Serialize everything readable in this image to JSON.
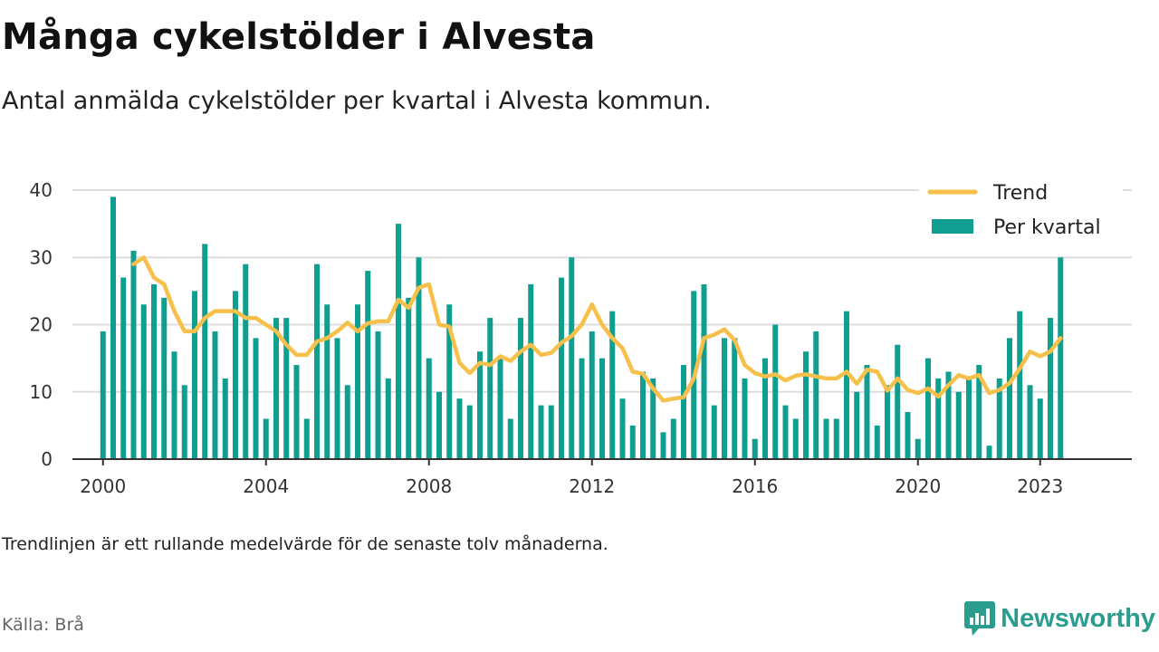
{
  "title": "Många cykelstölder i Alvesta",
  "subtitle": "Antal anmälda cykelstölder per kvartal i Alvesta kommun.",
  "footnote": "Trendlinjen är ett rullande medelvärde för de senaste tolv månaderna.",
  "source": "Källa: Brå",
  "brand": {
    "name": "Newsworthy",
    "icon": "newsworthy-logo-icon"
  },
  "colors": {
    "bar": "#0f9e8f",
    "trend": "#f7c04a",
    "grid": "#dddddd",
    "axis": "#333333",
    "brand": "#2a9d8f"
  },
  "chart_data": {
    "type": "bar",
    "title": "Många cykelstölder i Alvesta",
    "xlabel": "",
    "ylabel": "",
    "ylim": [
      0,
      40
    ],
    "xlim": [
      1999.25,
      2025.25
    ],
    "yticks": [
      "0",
      "10",
      "20",
      "30",
      "40"
    ],
    "xticks": [
      "2000",
      "2004",
      "2008",
      "2012",
      "2016",
      "2020",
      "2023"
    ],
    "grid": true,
    "legend_position": "top-right",
    "categories": [
      "2000 Q1",
      "2000 Q2",
      "2000 Q3",
      "2000 Q4",
      "2001 Q1",
      "2001 Q2",
      "2001 Q3",
      "2001 Q4",
      "2002 Q1",
      "2002 Q2",
      "2002 Q3",
      "2002 Q4",
      "2003 Q1",
      "2003 Q2",
      "2003 Q3",
      "2003 Q4",
      "2004 Q1",
      "2004 Q2",
      "2004 Q3",
      "2004 Q4",
      "2005 Q1",
      "2005 Q2",
      "2005 Q3",
      "2005 Q4",
      "2006 Q1",
      "2006 Q2",
      "2006 Q3",
      "2006 Q4",
      "2007 Q1",
      "2007 Q2",
      "2007 Q3",
      "2007 Q4",
      "2008 Q1",
      "2008 Q2",
      "2008 Q3",
      "2008 Q4",
      "2009 Q1",
      "2009 Q2",
      "2009 Q3",
      "2009 Q4",
      "2010 Q1",
      "2010 Q2",
      "2010 Q3",
      "2010 Q4",
      "2011 Q1",
      "2011 Q2",
      "2011 Q3",
      "2011 Q4",
      "2012 Q1",
      "2012 Q2",
      "2012 Q3",
      "2012 Q4",
      "2013 Q1",
      "2013 Q2",
      "2013 Q3",
      "2013 Q4",
      "2014 Q1",
      "2014 Q2",
      "2014 Q3",
      "2014 Q4",
      "2015 Q1",
      "2015 Q2",
      "2015 Q3",
      "2015 Q4",
      "2016 Q1",
      "2016 Q2",
      "2016 Q3",
      "2016 Q4",
      "2017 Q1",
      "2017 Q2",
      "2017 Q3",
      "2017 Q4",
      "2018 Q1",
      "2018 Q2",
      "2018 Q3",
      "2018 Q4",
      "2019 Q1",
      "2019 Q2",
      "2019 Q3",
      "2019 Q4",
      "2020 Q1",
      "2020 Q2",
      "2020 Q3",
      "2020 Q4",
      "2021 Q1",
      "2021 Q2",
      "2021 Q3",
      "2021 Q4",
      "2022 Q1",
      "2022 Q2",
      "2022 Q3",
      "2022 Q4",
      "2023 Q1",
      "2023 Q2",
      "2023 Q3"
    ],
    "x": [
      2000.0,
      2000.25,
      2000.5,
      2000.75,
      2001.0,
      2001.25,
      2001.5,
      2001.75,
      2002.0,
      2002.25,
      2002.5,
      2002.75,
      2003.0,
      2003.25,
      2003.5,
      2003.75,
      2004.0,
      2004.25,
      2004.5,
      2004.75,
      2005.0,
      2005.25,
      2005.5,
      2005.75,
      2006.0,
      2006.25,
      2006.5,
      2006.75,
      2007.0,
      2007.25,
      2007.5,
      2007.75,
      2008.0,
      2008.25,
      2008.5,
      2008.75,
      2009.0,
      2009.25,
      2009.5,
      2009.75,
      2010.0,
      2010.25,
      2010.5,
      2010.75,
      2011.0,
      2011.25,
      2011.5,
      2011.75,
      2012.0,
      2012.25,
      2012.5,
      2012.75,
      2013.0,
      2013.25,
      2013.5,
      2013.75,
      2014.0,
      2014.25,
      2014.5,
      2014.75,
      2015.0,
      2015.25,
      2015.5,
      2015.75,
      2016.0,
      2016.25,
      2016.5,
      2016.75,
      2017.0,
      2017.25,
      2017.5,
      2017.75,
      2018.0,
      2018.25,
      2018.5,
      2018.75,
      2019.0,
      2019.25,
      2019.5,
      2019.75,
      2020.0,
      2020.25,
      2020.5,
      2020.75,
      2021.0,
      2021.25,
      2021.5,
      2021.75,
      2022.0,
      2022.25,
      2022.5,
      2022.75,
      2023.0,
      2023.25,
      2023.5
    ],
    "series": [
      {
        "name": "Per kvartal",
        "type": "bar",
        "values": [
          19,
          39,
          27,
          31,
          23,
          26,
          24,
          16,
          11,
          25,
          32,
          19,
          12,
          25,
          29,
          18,
          6,
          21,
          21,
          14,
          6,
          29,
          23,
          18,
          11,
          23,
          28,
          19,
          12,
          35,
          24,
          30,
          15,
          10,
          23,
          9,
          8,
          16,
          21,
          15,
          6,
          21,
          26,
          8,
          8,
          27,
          30,
          15,
          19,
          15,
          22,
          9,
          5,
          13,
          12,
          4,
          6,
          14,
          25,
          26,
          8,
          18,
          18,
          12,
          3,
          15,
          20,
          8,
          6,
          16,
          19,
          6,
          6,
          22,
          10,
          14,
          5,
          11,
          17,
          7,
          3,
          15,
          12,
          13,
          10,
          12,
          14,
          2,
          12,
          18,
          22,
          11,
          9,
          21,
          30
        ]
      },
      {
        "name": "Trend",
        "type": "line",
        "values": [
          null,
          null,
          null,
          29,
          30,
          27,
          26,
          22,
          19,
          19,
          21,
          22,
          22,
          22,
          21,
          21,
          20,
          19,
          17,
          15.5,
          15.5,
          17.5,
          18,
          19,
          20.3,
          19,
          20.2,
          20.5,
          20.5,
          23.7,
          22.5,
          25.5,
          26,
          20,
          19.7,
          14.3,
          12.8,
          14.3,
          14,
          15.3,
          14.6,
          16,
          17,
          15.5,
          15.8,
          17.3,
          18.3,
          20,
          23,
          20,
          18,
          16.5,
          13,
          12.7,
          10.5,
          8.7,
          9,
          9.2,
          12,
          18,
          18.5,
          19.3,
          17.7,
          14,
          12.8,
          12.3,
          12.6,
          11.7,
          12.4,
          12.6,
          12.3,
          12,
          12,
          13,
          11.2,
          13.3,
          13,
          10.2,
          12,
          10.3,
          9.8,
          10.5,
          9.3,
          11,
          12.5,
          12,
          12.5,
          9.8,
          10.3,
          11.3,
          13.5,
          16,
          15.3,
          16,
          18
        ]
      }
    ]
  }
}
